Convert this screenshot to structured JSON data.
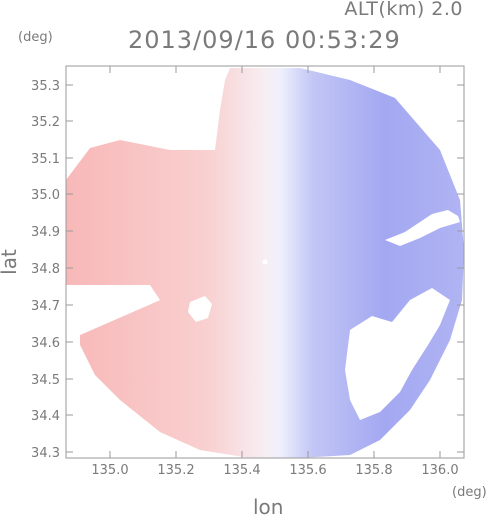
{
  "header": {
    "altitude_label": "ALT(km) 2.0",
    "timestamp": "2013/09/16 00:53:29"
  },
  "axes": {
    "x_label": "lon",
    "x_unit": "(deg)",
    "y_label": "lat",
    "y_unit": "(deg)",
    "x_ticks": [
      "135.0",
      "135.2",
      "135.4",
      "135.6",
      "135.8",
      "136.0"
    ],
    "y_ticks": [
      "35.3",
      "35.2",
      "35.1",
      "35.0",
      "34.9",
      "34.8",
      "34.7",
      "34.6",
      "34.5",
      "34.4",
      "34.3"
    ]
  },
  "colors": {
    "positive": "#f7c4c4",
    "negative": "#9ea4f0",
    "neutral": "#f3f3fb",
    "frame": "#9a9a9a",
    "text": "#7a7a7a"
  }
}
